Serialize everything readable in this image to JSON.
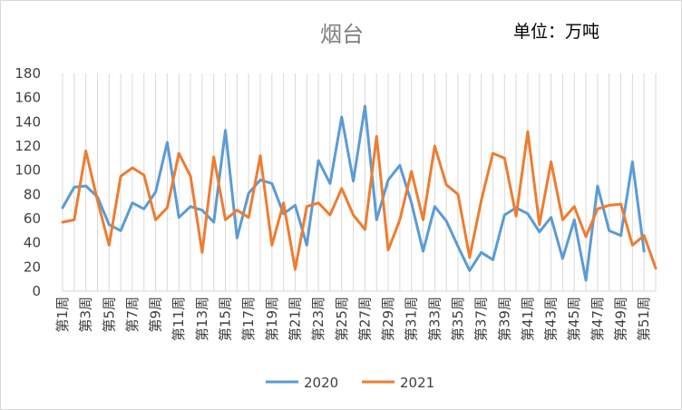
{
  "chart_data": {
    "type": "line",
    "title": "烟台",
    "unit_label": "单位：万吨",
    "xlabel": "",
    "ylabel": "",
    "ylim": [
      0,
      180
    ],
    "yticks": [
      0,
      20,
      40,
      60,
      80,
      100,
      120,
      140,
      160,
      180
    ],
    "grid": "vertical",
    "legend": "bottom",
    "categories": [
      "第1周",
      "第2周",
      "第3周",
      "第4周",
      "第5周",
      "第6周",
      "第7周",
      "第8周",
      "第9周",
      "第10周",
      "第11周",
      "第12周",
      "第13周",
      "第14周",
      "第15周",
      "第16周",
      "第17周",
      "第18周",
      "第19周",
      "第20周",
      "第21周",
      "第22周",
      "第23周",
      "第24周",
      "第25周",
      "第26周",
      "第27周",
      "第28周",
      "第29周",
      "第30周",
      "第31周",
      "第32周",
      "第33周",
      "第34周",
      "第35周",
      "第36周",
      "第37周",
      "第38周",
      "第39周",
      "第40周",
      "第41周",
      "第42周",
      "第43周",
      "第44周",
      "第45周",
      "第46周",
      "第47周",
      "第48周",
      "第49周",
      "第50周",
      "第51周",
      "第52周"
    ],
    "x_tick_labels": [
      "第1周",
      "第3周",
      "第5周",
      "第7周",
      "第9周",
      "第11周",
      "第13周",
      "第15周",
      "第17周",
      "第19周",
      "第21周",
      "第23周",
      "第25周",
      "第27周",
      "第29周",
      "第31周",
      "第33周",
      "第35周",
      "第37周",
      "第39周",
      "第41周",
      "第43周",
      "第45周",
      "第47周",
      "第49周",
      "第51周"
    ],
    "series": [
      {
        "name": "2020",
        "color": "#5b9bd5",
        "values": [
          69,
          86,
          87,
          78,
          55,
          50,
          73,
          68,
          82,
          123,
          61,
          70,
          67,
          57,
          133,
          44,
          81,
          92,
          89,
          64,
          71,
          38,
          108,
          89,
          144,
          91,
          153,
          59,
          92,
          104,
          73,
          33,
          70,
          58,
          37,
          17,
          32,
          26,
          63,
          69,
          64,
          49,
          61,
          27,
          59,
          9,
          87,
          50,
          46,
          107,
          33,
          null
        ]
      },
      {
        "name": "2021",
        "color": "#ed7d31",
        "values": [
          57,
          59,
          116,
          75,
          38,
          95,
          102,
          96,
          59,
          69,
          114,
          95,
          32,
          111,
          59,
          67,
          61,
          112,
          38,
          73,
          18,
          70,
          73,
          63,
          85,
          63,
          51,
          128,
          34,
          59,
          99,
          59,
          120,
          88,
          80,
          28,
          75,
          114,
          110,
          62,
          132,
          55,
          107,
          59,
          70,
          45,
          68,
          71,
          72,
          38,
          46,
          19
        ]
      }
    ]
  }
}
